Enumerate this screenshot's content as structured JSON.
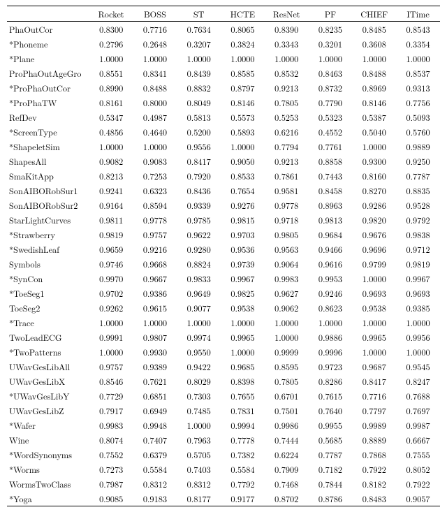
{
  "table": {
    "columns": [
      "",
      "Rocket",
      "BOSS",
      "ST",
      "HCTE",
      "ResNet",
      "PF",
      "CHIEF",
      "ITime"
    ],
    "col_widths_pct": [
      19,
      10.125,
      10.125,
      10.125,
      10.125,
      10.125,
      10.125,
      10.125,
      10.125
    ],
    "text_align": [
      "left",
      "center",
      "center",
      "center",
      "center",
      "center",
      "center",
      "center",
      "center"
    ],
    "border_color": "#000000",
    "background_color": "#ffffff",
    "font_size_pt": 9,
    "rows": [
      [
        "PhaOutCor",
        "0.8300",
        "0.7716",
        "0.7634",
        "0.8065",
        "0.8390",
        "0.8235",
        "0.8485",
        "0.8543"
      ],
      [
        "*Phoneme",
        "0.2796",
        "0.2648",
        "0.3207",
        "0.3824",
        "0.3343",
        "0.3201",
        "0.3608",
        "0.3354"
      ],
      [
        "*Plane",
        "1.0000",
        "1.0000",
        "1.0000",
        "1.0000",
        "1.0000",
        "1.0000",
        "1.0000",
        "1.0000"
      ],
      [
        "ProPhaOutAgeGro",
        "0.8551",
        "0.8341",
        "0.8439",
        "0.8585",
        "0.8532",
        "0.8463",
        "0.8488",
        "0.8537"
      ],
      [
        "*ProPhaOutCor",
        "0.8990",
        "0.8488",
        "0.8832",
        "0.8797",
        "0.9213",
        "0.8732",
        "0.8969",
        "0.9313"
      ],
      [
        "*ProPhaTW",
        "0.8161",
        "0.8000",
        "0.8049",
        "0.8146",
        "0.7805",
        "0.7790",
        "0.8146",
        "0.7756"
      ],
      [
        "RefDev",
        "0.5347",
        "0.4987",
        "0.5813",
        "0.5573",
        "0.5253",
        "0.5323",
        "0.5387",
        "0.5093"
      ],
      [
        "*ScreenType",
        "0.4856",
        "0.4640",
        "0.5200",
        "0.5893",
        "0.6216",
        "0.4552",
        "0.5040",
        "0.5760"
      ],
      [
        "*ShapeletSim",
        "1.0000",
        "1.0000",
        "0.9556",
        "1.0000",
        "0.7794",
        "0.7761",
        "1.0000",
        "0.9889"
      ],
      [
        "ShapesAll",
        "0.9082",
        "0.9083",
        "0.8417",
        "0.9050",
        "0.9213",
        "0.8858",
        "0.9300",
        "0.9250"
      ],
      [
        "SmaKitApp",
        "0.8213",
        "0.7253",
        "0.7920",
        "0.8533",
        "0.7861",
        "0.7443",
        "0.8160",
        "0.7787"
      ],
      [
        "SonAIBORobSur1",
        "0.9241",
        "0.6323",
        "0.8436",
        "0.7654",
        "0.9581",
        "0.8458",
        "0.8270",
        "0.8835"
      ],
      [
        "SonAIBORobSur2",
        "0.9164",
        "0.8594",
        "0.9339",
        "0.9276",
        "0.9778",
        "0.8963",
        "0.9286",
        "0.9528"
      ],
      [
        "StarLightCurves",
        "0.9811",
        "0.9778",
        "0.9785",
        "0.9815",
        "0.9718",
        "0.9813",
        "0.9820",
        "0.9792"
      ],
      [
        "*Strawberry",
        "0.9819",
        "0.9757",
        "0.9622",
        "0.9703",
        "0.9805",
        "0.9684",
        "0.9676",
        "0.9838"
      ],
      [
        "*SwedishLeaf",
        "0.9659",
        "0.9216",
        "0.9280",
        "0.9536",
        "0.9563",
        "0.9466",
        "0.9696",
        "0.9712"
      ],
      [
        "Symbols",
        "0.9746",
        "0.9668",
        "0.8824",
        "0.9739",
        "0.9064",
        "0.9616",
        "0.9799",
        "0.9819"
      ],
      [
        "*SynCon",
        "0.9970",
        "0.9667",
        "0.9833",
        "0.9967",
        "0.9983",
        "0.9953",
        "1.0000",
        "0.9967"
      ],
      [
        "*ToeSeg1",
        "0.9702",
        "0.9386",
        "0.9649",
        "0.9825",
        "0.9627",
        "0.9246",
        "0.9693",
        "0.9693"
      ],
      [
        "ToeSeg2",
        "0.9262",
        "0.9615",
        "0.9077",
        "0.9538",
        "0.9062",
        "0.8623",
        "0.9538",
        "0.9385"
      ],
      [
        "*Trace",
        "1.0000",
        "1.0000",
        "1.0000",
        "1.0000",
        "1.0000",
        "1.0000",
        "1.0000",
        "1.0000"
      ],
      [
        "TwoLeadECG",
        "0.9991",
        "0.9807",
        "0.9974",
        "0.9965",
        "1.0000",
        "0.9886",
        "0.9965",
        "0.9956"
      ],
      [
        "*TwoPatterns",
        "1.0000",
        "0.9930",
        "0.9550",
        "1.0000",
        "0.9999",
        "0.9996",
        "1.0000",
        "1.0000"
      ],
      [
        "UWavGesLibAll",
        "0.9757",
        "0.9389",
        "0.9422",
        "0.9685",
        "0.8595",
        "0.9723",
        "0.9687",
        "0.9545"
      ],
      [
        "UWavGesLibX",
        "0.8546",
        "0.7621",
        "0.8029",
        "0.8398",
        "0.7805",
        "0.8286",
        "0.8417",
        "0.8247"
      ],
      [
        "*UWavGesLibY",
        "0.7729",
        "0.6851",
        "0.7303",
        "0.7655",
        "0.6701",
        "0.7615",
        "0.7716",
        "0.7688"
      ],
      [
        "UWavGesLibZ",
        "0.7917",
        "0.6949",
        "0.7485",
        "0.7831",
        "0.7501",
        "0.7640",
        "0.7797",
        "0.7697"
      ],
      [
        "*Wafer",
        "0.9983",
        "0.9948",
        "1.0000",
        "0.9994",
        "0.9986",
        "0.9955",
        "0.9989",
        "0.9987"
      ],
      [
        "Wine",
        "0.8074",
        "0.7407",
        "0.7963",
        "0.7778",
        "0.7444",
        "0.5685",
        "0.8889",
        "0.6667"
      ],
      [
        "*WordSynonyms",
        "0.7552",
        "0.6379",
        "0.5705",
        "0.7382",
        "0.6224",
        "0.7787",
        "0.7868",
        "0.7555"
      ],
      [
        "*Worms",
        "0.7273",
        "0.5584",
        "0.7403",
        "0.5584",
        "0.7909",
        "0.7182",
        "0.7922",
        "0.8052"
      ],
      [
        "WormsTwoClass",
        "0.7987",
        "0.8312",
        "0.8312",
        "0.7792",
        "0.7468",
        "0.7844",
        "0.8182",
        "0.7922"
      ],
      [
        "*Yoga",
        "0.9085",
        "0.9183",
        "0.8177",
        "0.9177",
        "0.8702",
        "0.8786",
        "0.8483",
        "0.9057"
      ]
    ]
  }
}
